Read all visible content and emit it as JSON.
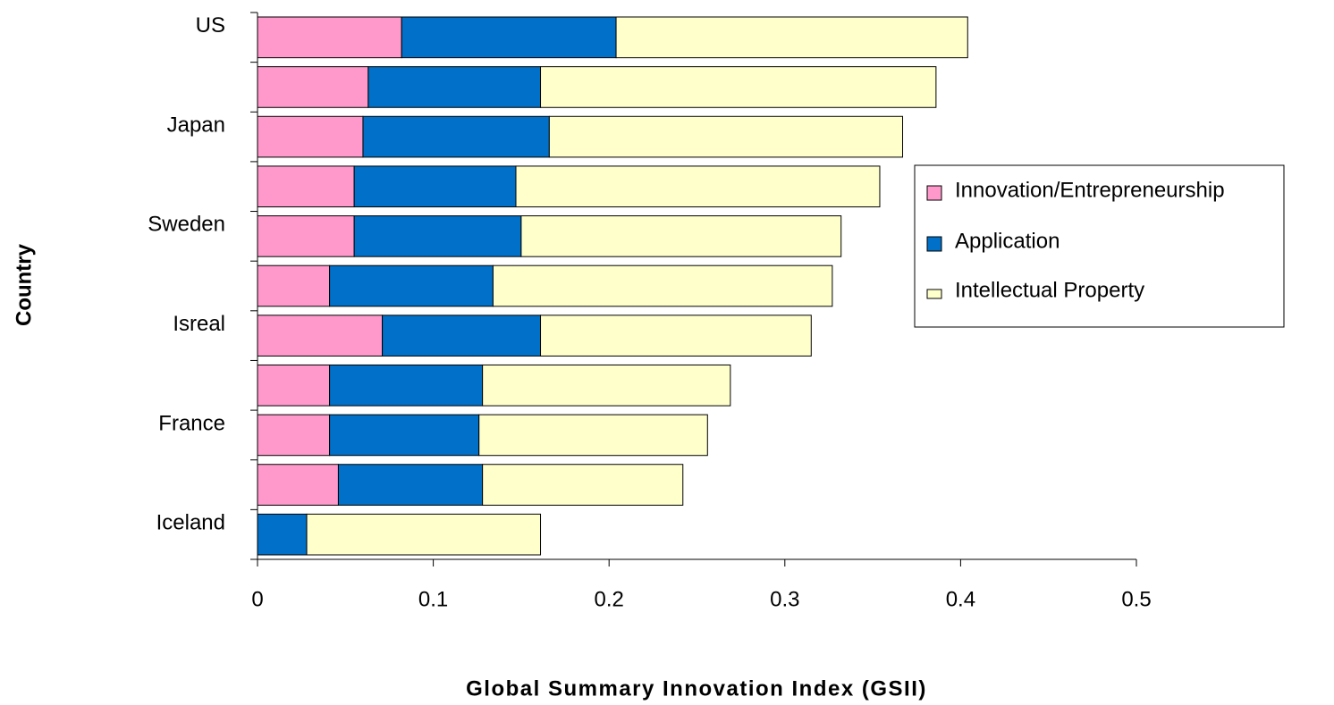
{
  "chart_data": {
    "type": "bar",
    "orientation": "horizontal",
    "stacked": true,
    "xlabel": "Global Summary Innovation Index (GSII)",
    "ylabel": "Country",
    "categories": [
      "US",
      null,
      "Japan",
      null,
      "Sweden",
      null,
      "Isreal",
      null,
      "France",
      null,
      "Iceland"
    ],
    "series": [
      {
        "name": "Innovation/Entrepreneurship",
        "color": "#ff99cc",
        "values": [
          0.082,
          0.063,
          0.06,
          0.055,
          0.055,
          0.041,
          0.071,
          0.041,
          0.041,
          0.046,
          0
        ]
      },
      {
        "name": "Application",
        "color": "#0070c8",
        "values": [
          0.122,
          0.098,
          0.106,
          0.092,
          0.095,
          0.093,
          0.09,
          0.087,
          0.085,
          0.082,
          0.028
        ]
      },
      {
        "name": "Intellectual Property",
        "color": "#ffffcc",
        "values": [
          0.2,
          0.225,
          0.201,
          0.207,
          0.182,
          0.193,
          0.154,
          0.141,
          0.13,
          0.114,
          0.133
        ]
      }
    ],
    "xlim": [
      0,
      0.5
    ],
    "xticks": [
      0,
      0.1,
      0.2,
      0.3,
      0.4,
      0.5
    ],
    "legend": "right"
  }
}
